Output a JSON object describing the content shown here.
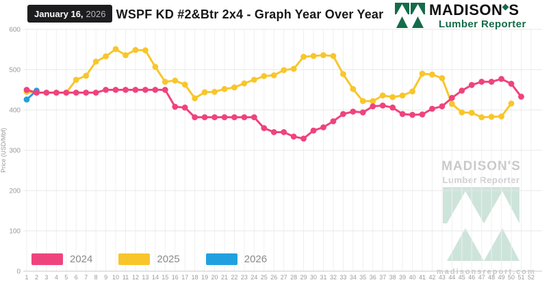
{
  "header": {
    "date_badge": {
      "date": "January 16,",
      "year": "2026"
    },
    "title": "WSPF KD #2&Btr 2x4 - Graph Year Over Year",
    "brand": {
      "name_main": "MADISON",
      "name_suffix": "S",
      "subtitle": "Lumber Reporter"
    }
  },
  "watermark": {
    "name": "MADISON'S",
    "subtitle": "Lumber Reporter",
    "site": "madisonsreport.com"
  },
  "chart_data": {
    "type": "line",
    "title": "WSPF KD #2&Btr 2x4 - Graph Year Over Year",
    "xlabel": "",
    "ylabel": "Price (USD/Mbf)",
    "ylim": [
      0,
      600
    ],
    "yticks": [
      0,
      100,
      200,
      300,
      400,
      500,
      600
    ],
    "grid": true,
    "legend_position": "bottom-left",
    "x": [
      1,
      2,
      3,
      4,
      5,
      6,
      7,
      8,
      9,
      10,
      11,
      12,
      13,
      14,
      15,
      16,
      17,
      18,
      19,
      20,
      21,
      22,
      23,
      24,
      25,
      26,
      27,
      28,
      29,
      30,
      31,
      32,
      33,
      34,
      35,
      36,
      37,
      38,
      39,
      40,
      41,
      42,
      43,
      44,
      45,
      46,
      47,
      48,
      49,
      50,
      51,
      52
    ],
    "series": [
      {
        "name": "2024",
        "color": "#ef437d",
        "values": [
          450,
          443,
          443,
          443,
          443,
          443,
          443,
          443,
          450,
          450,
          450,
          450,
          450,
          450,
          450,
          408,
          406,
          382,
          382,
          382,
          382,
          382,
          382,
          382,
          355,
          345,
          345,
          334,
          329,
          349,
          357,
          372,
          390,
          396,
          394,
          409,
          411,
          406,
          390,
          388,
          389,
          403,
          409,
          430,
          448,
          462,
          470,
          470,
          477,
          465,
          433
        ]
      },
      {
        "name": "2025",
        "color": "#f8c62b",
        "values": [
          445,
          443,
          443,
          443,
          443,
          475,
          485,
          520,
          533,
          551,
          536,
          549,
          548,
          507,
          470,
          473,
          463,
          429,
          444,
          445,
          452,
          456,
          466,
          475,
          484,
          486,
          499,
          502,
          532,
          534,
          536,
          534,
          489,
          452,
          422,
          422,
          436,
          432,
          436,
          446,
          490,
          488,
          479,
          415,
          394,
          393,
          382,
          383,
          384,
          416
        ]
      },
      {
        "name": "2026",
        "color": "#21a0df",
        "values": [
          426,
          448
        ]
      }
    ],
    "draw_order": [
      1,
      2,
      0
    ]
  }
}
